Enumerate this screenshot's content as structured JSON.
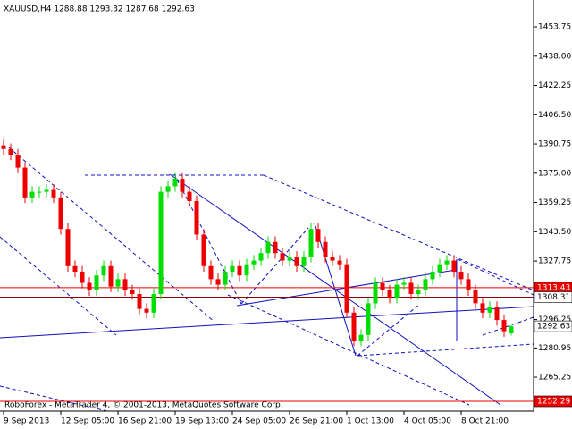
{
  "chart_data": {
    "type": "candlestick",
    "title": "XAUUSD,H4  1288.88 1293.32 1287.68 1292.63",
    "footer": "RoboForex - MetaTrader 4, © 2001-2013, MetaQuotes Software Corp.",
    "categories": [
      "9 Sep 2013",
      null,
      null,
      null,
      null,
      null,
      null,
      null,
      "12 Sep 05:00",
      null,
      null,
      null,
      null,
      null,
      null,
      null,
      "16 Sep 21:00",
      null,
      null,
      null,
      null,
      null,
      null,
      null,
      "19 Sep 13:00",
      null,
      null,
      null,
      null,
      null,
      null,
      null,
      "24 Sep 05:00",
      null,
      null,
      null,
      null,
      null,
      null,
      null,
      "26 Sep 21:00",
      null,
      null,
      null,
      null,
      null,
      null,
      null,
      "1 Oct 13:00",
      null,
      null,
      null,
      null,
      null,
      null,
      null,
      "4 Oct 05:00",
      null,
      null,
      null,
      null,
      null,
      null,
      null,
      "8 Oct 21:00",
      null,
      null,
      null,
      null,
      null,
      null,
      null
    ],
    "open": [
      1390,
      1388,
      1385,
      1378,
      1362,
      1365,
      1365,
      1366,
      1362,
      1345,
      1325,
      1322,
      1316,
      1312,
      1320,
      1325,
      1314,
      1318,
      1312,
      1310,
      1302,
      1300,
      1310,
      1365,
      1368,
      1372,
      1365,
      1360,
      1342,
      1325,
      1318,
      1315,
      1322,
      1325,
      1320,
      1326,
      1328,
      1332,
      1338,
      1332,
      1328,
      1330,
      1325,
      1330,
      1345,
      1338,
      1330,
      1328,
      1326,
      1300,
      1285,
      1288,
      1305,
      1316,
      1312,
      1308,
      1315,
      1316,
      1310,
      1312,
      1318,
      1322,
      1326,
      1328,
      1322,
      1318,
      1312,
      1305,
      1300,
      1303,
      1296,
      1288.88
    ],
    "high": [
      1393,
      1391,
      1388,
      1381,
      1368,
      1368,
      1369,
      1369,
      1365,
      1348,
      1328,
      1325,
      1319,
      1323,
      1328,
      1328,
      1321,
      1321,
      1315,
      1313,
      1305,
      1313,
      1368,
      1371,
      1375,
      1375,
      1368,
      1363,
      1345,
      1328,
      1321,
      1325,
      1328,
      1328,
      1329,
      1331,
      1335,
      1341,
      1341,
      1335,
      1333,
      1333,
      1333,
      1348,
      1348,
      1341,
      1333,
      1331,
      1329,
      1303,
      1291,
      1308,
      1319,
      1319,
      1315,
      1318,
      1319,
      1319,
      1315,
      1321,
      1325,
      1329,
      1331,
      1331,
      1325,
      1321,
      1315,
      1308,
      1306,
      1306,
      1299,
      1293.32
    ],
    "low": [
      1385,
      1382,
      1375,
      1359,
      1359,
      1362,
      1362,
      1359,
      1342,
      1322,
      1319,
      1313,
      1309,
      1309,
      1317,
      1311,
      1311,
      1309,
      1307,
      1299,
      1297,
      1297,
      1307,
      1362,
      1365,
      1362,
      1357,
      1339,
      1322,
      1315,
      1312,
      1312,
      1319,
      1317,
      1317,
      1323,
      1325,
      1329,
      1329,
      1325,
      1325,
      1322,
      1322,
      1327,
      1335,
      1327,
      1325,
      1323,
      1297,
      1282,
      1282,
      1285,
      1302,
      1309,
      1305,
      1305,
      1312,
      1307,
      1307,
      1309,
      1315,
      1319,
      1323,
      1319,
      1315,
      1309,
      1302,
      1297,
      1297,
      1293,
      1287,
      1287.68
    ],
    "close": [
      1388,
      1385,
      1378,
      1362,
      1365,
      1365,
      1366,
      1362,
      1345,
      1325,
      1322,
      1316,
      1312,
      1320,
      1325,
      1314,
      1318,
      1312,
      1310,
      1302,
      1300,
      1310,
      1365,
      1368,
      1372,
      1365,
      1360,
      1342,
      1325,
      1318,
      1315,
      1322,
      1325,
      1320,
      1326,
      1328,
      1332,
      1338,
      1332,
      1328,
      1330,
      1325,
      1330,
      1345,
      1338,
      1330,
      1328,
      1326,
      1300,
      1285,
      1288,
      1305,
      1316,
      1312,
      1308,
      1315,
      1316,
      1310,
      1312,
      1318,
      1322,
      1326,
      1328,
      1322,
      1318,
      1312,
      1305,
      1300,
      1303,
      1296,
      1290,
      1292.63
    ],
    "up_color": "#00dd00",
    "down_color": "#ee0000",
    "ylim": [
      1247.0,
      1468.2
    ],
    "yticks": [
      1453.75,
      {
        "value": 1438,
        "label": "1438.00"
      },
      1422.25,
      {
        "value": 1406.5,
        "label": "1406.50"
      },
      1390.75,
      {
        "value": 1375,
        "label": "1375.00"
      },
      1359.25,
      {
        "value": 1343.5,
        "label": "1343.50"
      },
      1327.75,
      1296.25,
      1280.95,
      1265.25
    ],
    "levels": [
      {
        "value": 1313.43,
        "color": "#ee0000",
        "box": "#ee0000",
        "text_color": "#ffffff"
      },
      {
        "value": 1308.31,
        "color": "#8b0000",
        "box": "#ffffff",
        "text_color": "#000000"
      },
      {
        "value": 1292.63,
        "color": null,
        "box": "#ffffff",
        "text_color": "#000000"
      },
      {
        "value": 1252.29,
        "color": "#ee0000",
        "box": "#ee0000",
        "text_color": "#ffffff"
      }
    ]
  }
}
